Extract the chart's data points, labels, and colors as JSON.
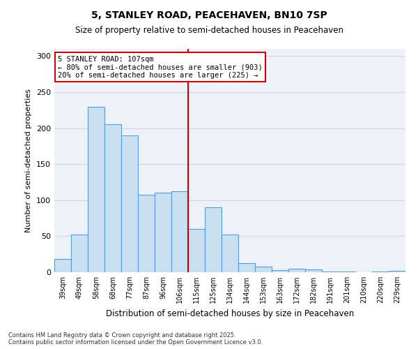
{
  "title": "5, STANLEY ROAD, PEACEHAVEN, BN10 7SP",
  "subtitle": "Size of property relative to semi-detached houses in Peacehaven",
  "xlabel": "Distribution of semi-detached houses by size in Peacehaven",
  "ylabel": "Number of semi-detached properties",
  "categories": [
    "39sqm",
    "49sqm",
    "58sqm",
    "68sqm",
    "77sqm",
    "87sqm",
    "96sqm",
    "106sqm",
    "115sqm",
    "125sqm",
    "134sqm",
    "144sqm",
    "153sqm",
    "163sqm",
    "172sqm",
    "182sqm",
    "191sqm",
    "201sqm",
    "210sqm",
    "220sqm",
    "229sqm"
  ],
  "values": [
    18,
    52,
    230,
    205,
    190,
    108,
    110,
    112,
    60,
    90,
    52,
    13,
    8,
    3,
    5,
    4,
    1,
    1,
    0,
    1,
    2
  ],
  "bar_color": "#c9dff2",
  "bar_edge_color": "#5b9bd5",
  "reference_line_label": "5 STANLEY ROAD: 107sqm",
  "annotation_smaller": "← 80% of semi-detached houses are smaller (903)",
  "annotation_larger": "20% of semi-detached houses are larger (225) →",
  "ylim": [
    0,
    310
  ],
  "yticks": [
    0,
    50,
    100,
    150,
    200,
    250,
    300
  ],
  "grid_color": "#d0d8e8",
  "background_color": "#eef2f8",
  "footer_line1": "Contains HM Land Registry data © Crown copyright and database right 2025.",
  "footer_line2": "Contains public sector information licensed under the Open Government Licence v3.0.",
  "title_fontsize": 10,
  "subtitle_fontsize": 8.5,
  "annotation_box_edge_color": "#cc0000",
  "reference_line_color": "#cc0000",
  "ref_bar_index": 7
}
